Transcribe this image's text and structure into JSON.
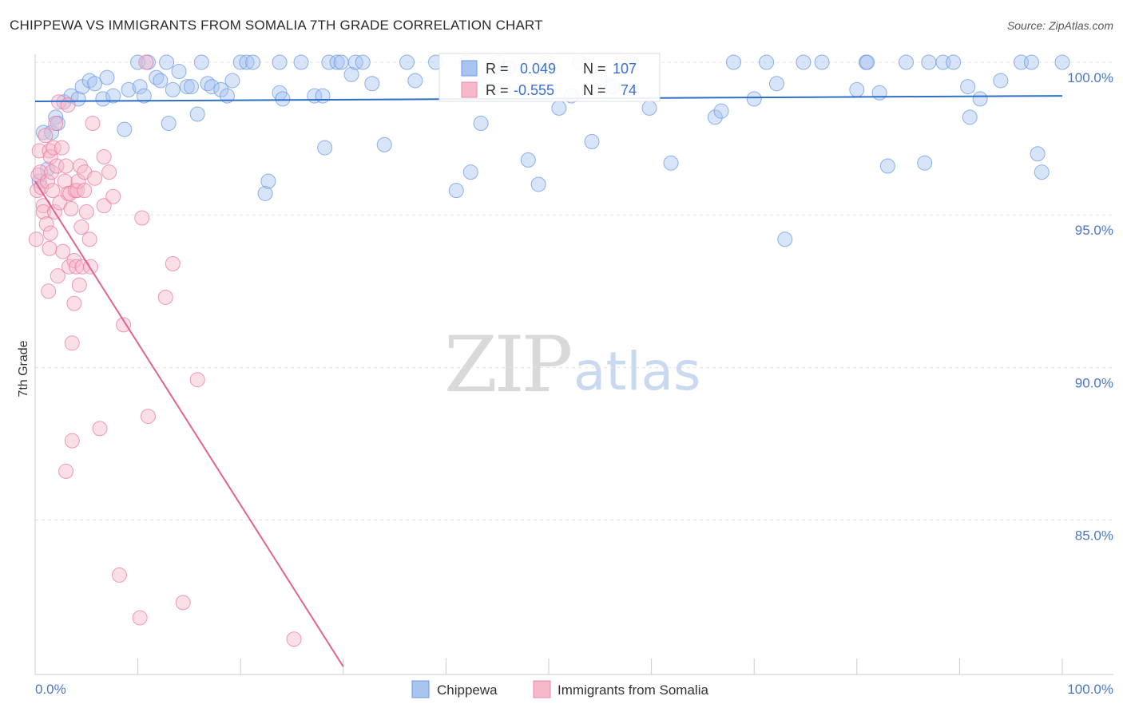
{
  "title": "CHIPPEWA VS IMMIGRANTS FROM SOMALIA 7TH GRADE CORRELATION CHART",
  "source": "Source: ZipAtlas.com",
  "watermark": {
    "zip": "ZIP",
    "atlas": "atlas"
  },
  "legend": {
    "r_label": "R =",
    "n_label": "N =",
    "rows": [
      {
        "name": "Chippewa",
        "r": "0.049",
        "n": "107",
        "fill": "#a9c4f0",
        "stroke": "#6b9ae0"
      },
      {
        "name": "Immigrants from Somalia",
        "r": "-0.555",
        "n": "74",
        "fill": "#f7b8c9",
        "stroke": "#ea89a6"
      }
    ]
  },
  "chart_data": {
    "type": "scatter",
    "title": "CHIPPEWA VS IMMIGRANTS FROM SOMALIA 7TH GRADE CORRELATION CHART",
    "xlabel": "",
    "ylabel": "7th Grade",
    "xlim": [
      0,
      100
    ],
    "ylim": [
      80.2,
      100.8
    ],
    "x_tick_labels": [
      "0.0%",
      "100.0%"
    ],
    "y_ticks": [
      {
        "value": 100,
        "label": "100.0%"
      },
      {
        "value": 95,
        "label": "95.0%"
      },
      {
        "value": 90,
        "label": "90.0%"
      },
      {
        "value": 85,
        "label": "85.0%"
      }
    ],
    "series": [
      {
        "name": "Chippewa",
        "color": "#6b9ae0",
        "fill": "#a9c4f0",
        "trend": {
          "x": [
            0,
            100
          ],
          "y": [
            98.72,
            98.9
          ]
        },
        "points": [
          [
            0.4,
            96.1
          ],
          [
            0.8,
            97.7
          ],
          [
            1.2,
            96.5
          ],
          [
            1.6,
            97.7
          ],
          [
            2.0,
            98.2
          ],
          [
            2.2,
            98.0
          ],
          [
            2.8,
            98.7
          ],
          [
            3.5,
            98.9
          ],
          [
            4.2,
            98.8
          ],
          [
            4.6,
            99.2
          ],
          [
            5.3,
            99.4
          ],
          [
            5.8,
            99.3
          ],
          [
            6.6,
            98.8
          ],
          [
            7.0,
            99.5
          ],
          [
            7.6,
            98.9
          ],
          [
            8.7,
            97.8
          ],
          [
            9.1,
            99.1
          ],
          [
            10.0,
            100.0
          ],
          [
            10.2,
            99.2
          ],
          [
            10.6,
            98.9
          ],
          [
            11.0,
            100.0
          ],
          [
            11.8,
            99.5
          ],
          [
            12.2,
            99.4
          ],
          [
            12.8,
            100.0
          ],
          [
            13.0,
            98.0
          ],
          [
            13.4,
            99.1
          ],
          [
            14.0,
            99.7
          ],
          [
            14.8,
            99.2
          ],
          [
            15.2,
            99.2
          ],
          [
            15.8,
            98.3
          ],
          [
            16.2,
            100.0
          ],
          [
            16.8,
            99.3
          ],
          [
            17.2,
            99.2
          ],
          [
            18.1,
            99.1
          ],
          [
            18.7,
            98.9
          ],
          [
            19.2,
            99.4
          ],
          [
            20.0,
            100.0
          ],
          [
            20.6,
            100.0
          ],
          [
            21.2,
            100.0
          ],
          [
            22.4,
            95.7
          ],
          [
            22.7,
            96.1
          ],
          [
            23.8,
            100.0
          ],
          [
            23.8,
            99.0
          ],
          [
            24.1,
            98.8
          ],
          [
            25.9,
            100.0
          ],
          [
            27.2,
            98.9
          ],
          [
            28.0,
            98.9
          ],
          [
            28.2,
            97.2
          ],
          [
            28.6,
            100.0
          ],
          [
            29.4,
            100.0
          ],
          [
            29.8,
            100.0
          ],
          [
            30.8,
            99.6
          ],
          [
            31.2,
            100.0
          ],
          [
            31.9,
            100.0
          ],
          [
            32.8,
            99.3
          ],
          [
            34.0,
            97.3
          ],
          [
            36.2,
            100.0
          ],
          [
            37.0,
            99.4
          ],
          [
            39.0,
            100.0
          ],
          [
            41.0,
            95.8
          ],
          [
            42.0,
            100.0
          ],
          [
            42.4,
            96.4
          ],
          [
            43.4,
            98.0
          ],
          [
            43.8,
            99.4
          ],
          [
            45.0,
            100.0
          ],
          [
            46.0,
            99.8
          ],
          [
            48.0,
            96.8
          ],
          [
            49.0,
            96.0
          ],
          [
            49.8,
            100.0
          ],
          [
            51.0,
            98.5
          ],
          [
            52.2,
            98.9
          ],
          [
            53.0,
            100.0
          ],
          [
            54.2,
            97.4
          ],
          [
            55.0,
            99.5
          ],
          [
            56.2,
            99.2
          ],
          [
            57.9,
            100.0
          ],
          [
            59.8,
            98.5
          ],
          [
            61.9,
            96.7
          ],
          [
            66.2,
            98.2
          ],
          [
            66.8,
            98.4
          ],
          [
            68.0,
            100.0
          ],
          [
            70.0,
            98.8
          ],
          [
            71.2,
            100.0
          ],
          [
            72.2,
            99.3
          ],
          [
            73.0,
            94.2
          ],
          [
            74.8,
            100.0
          ],
          [
            76.6,
            100.0
          ],
          [
            80.0,
            99.1
          ],
          [
            80.9,
            100.0
          ],
          [
            81.0,
            100.0
          ],
          [
            82.2,
            99.0
          ],
          [
            83.0,
            96.6
          ],
          [
            84.8,
            100.0
          ],
          [
            86.6,
            96.7
          ],
          [
            87.0,
            100.0
          ],
          [
            88.4,
            100.0
          ],
          [
            89.4,
            100.0
          ],
          [
            90.8,
            99.2
          ],
          [
            91.0,
            98.2
          ],
          [
            92.0,
            98.8
          ],
          [
            94.0,
            99.4
          ],
          [
            96.0,
            100.0
          ],
          [
            97.0,
            100.0
          ],
          [
            97.6,
            97.0
          ],
          [
            98.0,
            96.4
          ],
          [
            100.0,
            100.0
          ]
        ]
      },
      {
        "name": "Immigrants from Somalia",
        "color": "#e87aa0",
        "fill": "#f7b8c9",
        "trend": {
          "x": [
            0,
            30
          ],
          "y": [
            96.1,
            80.2
          ]
        },
        "points": [
          [
            0.1,
            94.2
          ],
          [
            0.2,
            95.8
          ],
          [
            0.3,
            96.3
          ],
          [
            0.4,
            97.1
          ],
          [
            0.5,
            96.4
          ],
          [
            0.6,
            95.9
          ],
          [
            0.8,
            95.3
          ],
          [
            0.8,
            95.1
          ],
          [
            1.0,
            97.6
          ],
          [
            1.1,
            94.7
          ],
          [
            1.2,
            96.1
          ],
          [
            1.3,
            92.5
          ],
          [
            1.4,
            93.9
          ],
          [
            1.4,
            97.1
          ],
          [
            1.5,
            94.4
          ],
          [
            1.5,
            96.9
          ],
          [
            1.6,
            96.4
          ],
          [
            1.7,
            95.8
          ],
          [
            1.8,
            97.2
          ],
          [
            1.9,
            95.1
          ],
          [
            2.0,
            98.0
          ],
          [
            2.1,
            96.6
          ],
          [
            2.2,
            93.0
          ],
          [
            2.3,
            98.7
          ],
          [
            2.4,
            95.4
          ],
          [
            2.6,
            97.2
          ],
          [
            2.7,
            93.8
          ],
          [
            2.9,
            96.1
          ],
          [
            3.0,
            96.6
          ],
          [
            3.0,
            86.6
          ],
          [
            3.2,
            95.7
          ],
          [
            3.2,
            98.6
          ],
          [
            3.3,
            93.3
          ],
          [
            3.4,
            95.7
          ],
          [
            3.5,
            95.2
          ],
          [
            3.6,
            90.8
          ],
          [
            3.6,
            87.6
          ],
          [
            3.8,
            92.1
          ],
          [
            3.8,
            93.5
          ],
          [
            3.9,
            95.8
          ],
          [
            4.0,
            93.3
          ],
          [
            4.1,
            95.8
          ],
          [
            4.2,
            96.1
          ],
          [
            4.3,
            92.7
          ],
          [
            4.4,
            96.6
          ],
          [
            4.5,
            94.6
          ],
          [
            4.6,
            93.3
          ],
          [
            4.8,
            95.8
          ],
          [
            4.8,
            96.4
          ],
          [
            5.0,
            95.1
          ],
          [
            5.3,
            94.2
          ],
          [
            5.4,
            93.3
          ],
          [
            5.6,
            98.0
          ],
          [
            5.8,
            96.2
          ],
          [
            6.3,
            88.0
          ],
          [
            6.7,
            95.3
          ],
          [
            6.7,
            96.9
          ],
          [
            7.2,
            96.4
          ],
          [
            7.6,
            95.6
          ],
          [
            8.2,
            83.2
          ],
          [
            8.6,
            91.4
          ],
          [
            10.2,
            81.8
          ],
          [
            10.4,
            94.9
          ],
          [
            10.8,
            100.0
          ],
          [
            11.0,
            88.4
          ],
          [
            12.7,
            92.3
          ],
          [
            13.4,
            93.4
          ],
          [
            14.4,
            82.3
          ],
          [
            15.8,
            89.6
          ],
          [
            25.2,
            81.1
          ]
        ]
      }
    ]
  }
}
